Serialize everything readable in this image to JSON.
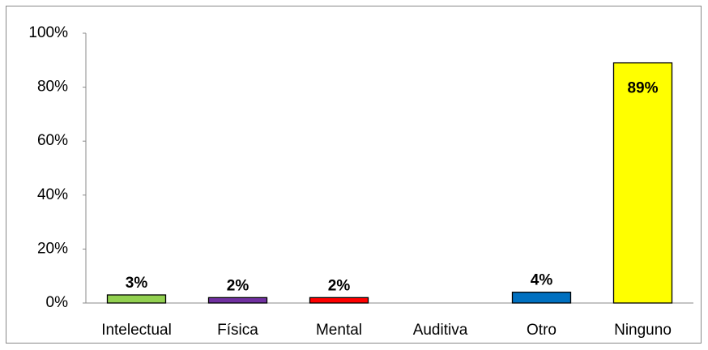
{
  "chart_data": {
    "type": "bar",
    "categories": [
      "Intelectual",
      "Física",
      "Mental",
      "Auditiva",
      "Otro",
      "Ninguno"
    ],
    "values": [
      3,
      2,
      2,
      null,
      4,
      89
    ],
    "value_labels": [
      "3%",
      "2%",
      "2%",
      null,
      "4%",
      "89%"
    ],
    "colors": [
      "#92d050",
      "#7030a0",
      "#ff0000",
      null,
      "#0070c0",
      "#ffff00"
    ],
    "ylim": [
      0,
      100
    ],
    "yticks": [
      {
        "value": 0,
        "label": "0%"
      },
      {
        "value": 20,
        "label": "20%"
      },
      {
        "value": 40,
        "label": "40%"
      },
      {
        "value": 60,
        "label": "60%"
      },
      {
        "value": 80,
        "label": "80%"
      },
      {
        "value": 100,
        "label": "100%"
      }
    ],
    "grid": false
  }
}
